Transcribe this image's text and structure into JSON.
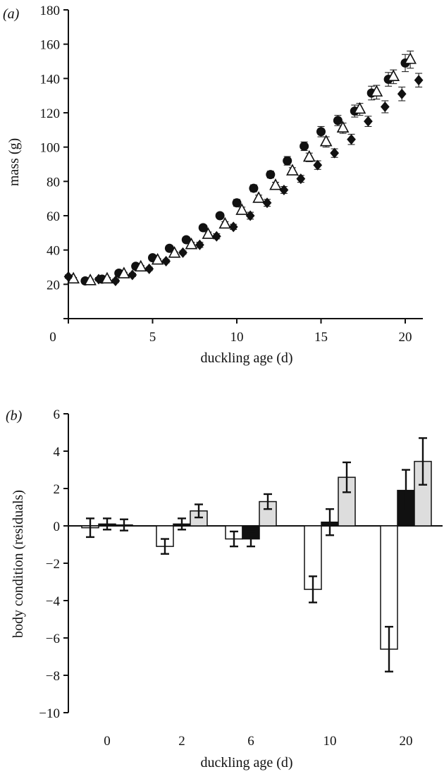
{
  "chart_data": [
    {
      "panel": "(a)",
      "type": "scatter",
      "xlabel": "duckling age (d)",
      "ylabel": "mass (g)",
      "xlim": [
        0,
        21
      ],
      "ylim": [
        0,
        180
      ],
      "xticks": [
        0,
        5,
        10,
        15,
        20
      ],
      "yticks": [
        20,
        40,
        60,
        80,
        100,
        120,
        140,
        160,
        180
      ],
      "grid": false,
      "series": [
        {
          "marker": "circle",
          "color": "#111111",
          "points": [
            {
              "x": 1,
              "y": 22,
              "err": 1
            },
            {
              "x": 2,
              "y": 23,
              "err": 1
            },
            {
              "x": 3,
              "y": 26.5,
              "err": 1
            },
            {
              "x": 4,
              "y": 30.5,
              "err": 1
            },
            {
              "x": 5,
              "y": 35.5,
              "err": 1
            },
            {
              "x": 6,
              "y": 41,
              "err": 1
            },
            {
              "x": 7,
              "y": 46,
              "err": 1.5
            },
            {
              "x": 8,
              "y": 53,
              "err": 1.5
            },
            {
              "x": 9,
              "y": 60,
              "err": 1.5
            },
            {
              "x": 10,
              "y": 67.5,
              "err": 2
            },
            {
              "x": 11,
              "y": 76,
              "err": 2
            },
            {
              "x": 12,
              "y": 84,
              "err": 2
            },
            {
              "x": 13,
              "y": 92,
              "err": 2.5
            },
            {
              "x": 14,
              "y": 100.5,
              "err": 2.5
            },
            {
              "x": 15,
              "y": 109,
              "err": 3
            },
            {
              "x": 16,
              "y": 115.5,
              "err": 3
            },
            {
              "x": 17,
              "y": 121,
              "err": 3.5
            },
            {
              "x": 18,
              "y": 131.5,
              "err": 4
            },
            {
              "x": 19,
              "y": 139.5,
              "err": 4
            },
            {
              "x": 20,
              "y": 149,
              "err": 5
            }
          ]
        },
        {
          "marker": "open-triangle",
          "color": "#111111",
          "points": [
            {
              "x": 0.3,
              "y": 23,
              "err": 1
            },
            {
              "x": 1.3,
              "y": 22,
              "err": 1
            },
            {
              "x": 2.3,
              "y": 23,
              "err": 1
            },
            {
              "x": 3.3,
              "y": 26,
              "err": 1
            },
            {
              "x": 4.3,
              "y": 30,
              "err": 1
            },
            {
              "x": 5.3,
              "y": 34,
              "err": 1
            },
            {
              "x": 6.3,
              "y": 38,
              "err": 1
            },
            {
              "x": 7.3,
              "y": 43,
              "err": 1.5
            },
            {
              "x": 8.3,
              "y": 49,
              "err": 1.5
            },
            {
              "x": 9.3,
              "y": 55,
              "err": 1.5
            },
            {
              "x": 10.3,
              "y": 63,
              "err": 2
            },
            {
              "x": 11.3,
              "y": 70,
              "err": 2
            },
            {
              "x": 12.3,
              "y": 77.5,
              "err": 2
            },
            {
              "x": 13.3,
              "y": 86,
              "err": 2
            },
            {
              "x": 14.3,
              "y": 94,
              "err": 2.5
            },
            {
              "x": 15.3,
              "y": 103,
              "err": 3
            },
            {
              "x": 16.3,
              "y": 111,
              "err": 3
            },
            {
              "x": 17.3,
              "y": 122,
              "err": 3.5
            },
            {
              "x": 18.3,
              "y": 132,
              "err": 4
            },
            {
              "x": 19.3,
              "y": 141,
              "err": 4
            },
            {
              "x": 20.3,
              "y": 151,
              "err": 5
            }
          ]
        },
        {
          "marker": "filled-diamond",
          "color": "#111111",
          "points": [
            {
              "x": 0,
              "y": 24.5,
              "err": 1
            },
            {
              "x": 1.8,
              "y": 23,
              "err": 1
            },
            {
              "x": 2.8,
              "y": 22,
              "err": 1
            },
            {
              "x": 3.8,
              "y": 25.5,
              "err": 1
            },
            {
              "x": 4.8,
              "y": 29,
              "err": 1
            },
            {
              "x": 5.8,
              "y": 33.5,
              "err": 1
            },
            {
              "x": 6.8,
              "y": 38.5,
              "err": 1
            },
            {
              "x": 7.8,
              "y": 43,
              "err": 1.5
            },
            {
              "x": 8.8,
              "y": 48,
              "err": 1.5
            },
            {
              "x": 9.8,
              "y": 53.5,
              "err": 1.5
            },
            {
              "x": 10.8,
              "y": 60,
              "err": 2
            },
            {
              "x": 11.8,
              "y": 67.5,
              "err": 2
            },
            {
              "x": 12.8,
              "y": 75,
              "err": 2
            },
            {
              "x": 13.8,
              "y": 81.5,
              "err": 2
            },
            {
              "x": 14.8,
              "y": 89.5,
              "err": 2.5
            },
            {
              "x": 15.8,
              "y": 96.5,
              "err": 2.5
            },
            {
              "x": 16.8,
              "y": 104.5,
              "err": 3
            },
            {
              "x": 17.8,
              "y": 115,
              "err": 3
            },
            {
              "x": 18.8,
              "y": 123.5,
              "err": 3.5
            },
            {
              "x": 19.8,
              "y": 131,
              "err": 4
            },
            {
              "x": 20.8,
              "y": 139,
              "err": 4
            }
          ]
        }
      ]
    },
    {
      "panel": "(b)",
      "type": "bar",
      "xlabel": "duckling age (d)",
      "ylabel": "body condition (residuals)",
      "categories": [
        "0",
        "2",
        "6",
        "10",
        "20"
      ],
      "ylim": [
        -10,
        6
      ],
      "yticks": [
        -10,
        -8,
        -6,
        -4,
        -2,
        0,
        2,
        4,
        6
      ],
      "grid": false,
      "series": [
        {
          "fill": "#ffffff",
          "values": [
            -0.1,
            -1.1,
            -0.7,
            -3.4,
            -6.6
          ],
          "errors": [
            0.5,
            0.4,
            0.4,
            0.7,
            1.2
          ]
        },
        {
          "fill": "#111111",
          "values": [
            0.1,
            0.1,
            -0.7,
            0.2,
            1.9
          ],
          "errors": [
            0.3,
            0.3,
            0.4,
            0.7,
            1.1
          ]
        },
        {
          "fill": "#dddddd",
          "values": [
            0.05,
            0.8,
            1.3,
            2.6,
            3.45
          ],
          "errors": [
            0.3,
            0.35,
            0.4,
            0.8,
            1.25
          ]
        }
      ]
    }
  ]
}
